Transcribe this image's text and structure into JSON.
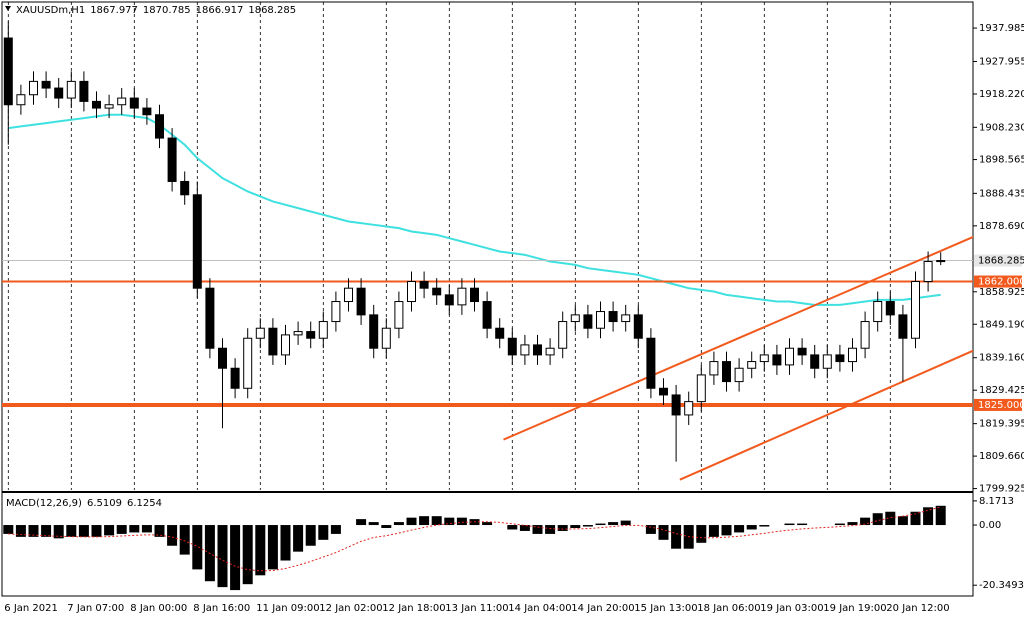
{
  "chart_data": [
    {
      "type": "candlestick",
      "symbol": "XAUUSDm,H1",
      "ohlc_header": [
        1867.977,
        1870.785,
        1866.917,
        1868.285
      ],
      "categories": [
        "6 Jan 2021",
        null,
        null,
        null,
        null,
        "7 Jan 07:00",
        null,
        null,
        null,
        null,
        "8 Jan 00:00",
        null,
        null,
        null,
        null,
        "8 Jan 16:00",
        null,
        null,
        null,
        null,
        "11 Jan 09:00",
        null,
        null,
        null,
        null,
        "12 Jan 02:00",
        null,
        null,
        null,
        null,
        "12 Jan 18:00",
        null,
        null,
        null,
        null,
        "13 Jan 11:00",
        null,
        null,
        null,
        null,
        "14 Jan 04:00",
        null,
        null,
        null,
        null,
        "14 Jan 20:00",
        null,
        null,
        null,
        null,
        "15 Jan 13:00",
        null,
        null,
        null,
        null,
        "18 Jan 06:00",
        null,
        null,
        null,
        null,
        "19 Jan 03:00",
        null,
        null,
        null,
        null,
        "19 Jan 19:00",
        null,
        null,
        null,
        null,
        "20 Jan 12:00",
        null,
        null,
        null,
        null
      ],
      "open": [
        1935,
        1915,
        1918,
        1922,
        1920,
        1917,
        1922,
        1916,
        1914,
        1915,
        1917,
        1914,
        1912,
        1905,
        1892,
        1888,
        1860,
        1842,
        1836,
        1830,
        1845,
        1848,
        1840,
        1846,
        1847,
        1845,
        1850,
        1856,
        1860,
        1852,
        1842,
        1848,
        1856,
        1862,
        1860,
        1858,
        1855,
        1860,
        1856,
        1848,
        1845,
        1840,
        1843,
        1840,
        1842,
        1850,
        1852,
        1848,
        1853,
        1850,
        1852,
        1845,
        1830,
        1828,
        1822,
        1826,
        1834,
        1838,
        1832,
        1836,
        1838,
        1840,
        1837,
        1842,
        1840,
        1836,
        1840,
        1838,
        1842,
        1850,
        1856,
        1852,
        1845,
        1862,
        1867.977
      ],
      "high": [
        1940,
        1921,
        1925,
        1925,
        1923,
        1925,
        1925,
        1919,
        1918,
        1920,
        1920,
        1917,
        1915,
        1908,
        1895,
        1892,
        1863,
        1845,
        1839,
        1848,
        1851,
        1851,
        1849,
        1850,
        1850,
        1853,
        1859,
        1863,
        1863,
        1855,
        1851,
        1859,
        1865,
        1865,
        1863,
        1861,
        1863,
        1863,
        1859,
        1851,
        1848,
        1846,
        1846,
        1845,
        1853,
        1855,
        1855,
        1856,
        1856,
        1855,
        1855,
        1848,
        1833,
        1831,
        1829,
        1837,
        1841,
        1841,
        1839,
        1841,
        1843,
        1843,
        1845,
        1845,
        1843,
        1843,
        1843,
        1845,
        1853,
        1859,
        1859,
        1855,
        1865,
        1871,
        1870.785
      ],
      "low": [
        1903,
        1912,
        1915,
        1917,
        1914,
        1914,
        1913,
        1911,
        1911,
        1912,
        1911,
        1909,
        1902,
        1889,
        1885,
        1857,
        1839,
        1818,
        1827,
        1827,
        1842,
        1837,
        1837,
        1843,
        1842,
        1842,
        1847,
        1853,
        1849,
        1839,
        1839,
        1845,
        1853,
        1857,
        1855,
        1852,
        1852,
        1853,
        1845,
        1842,
        1837,
        1837,
        1837,
        1837,
        1839,
        1847,
        1845,
        1845,
        1847,
        1847,
        1842,
        1827,
        1825,
        1808,
        1819,
        1823,
        1831,
        1829,
        1829,
        1833,
        1835,
        1834,
        1834,
        1837,
        1833,
        1833,
        1835,
        1835,
        1839,
        1847,
        1849,
        1832,
        1842,
        1859,
        1866.917
      ],
      "close": [
        1915,
        1918,
        1922,
        1920,
        1917,
        1922,
        1916,
        1914,
        1915,
        1917,
        1914,
        1912,
        1905,
        1892,
        1888,
        1860,
        1842,
        1836,
        1830,
        1845,
        1848,
        1840,
        1846,
        1847,
        1845,
        1850,
        1856,
        1860,
        1852,
        1842,
        1848,
        1856,
        1862,
        1860,
        1858,
        1855,
        1860,
        1856,
        1848,
        1845,
        1840,
        1843,
        1840,
        1842,
        1850,
        1852,
        1848,
        1853,
        1850,
        1852,
        1845,
        1830,
        1828,
        1822,
        1826,
        1834,
        1838,
        1832,
        1836,
        1838,
        1840,
        1837,
        1842,
        1840,
        1836,
        1840,
        1838,
        1842,
        1850,
        1856,
        1852,
        1845,
        1862,
        1868,
        1868.285
      ],
      "color_up": "#ffffff",
      "color_down": "#000000",
      "ma": {
        "color": "#3fe0e0",
        "values": [
          1908,
          1908.5,
          1909,
          1909.5,
          1910,
          1910.5,
          1911,
          1911.5,
          1912,
          1912,
          1911.5,
          1911,
          1909,
          1906,
          1903,
          1899,
          1896,
          1893,
          1891,
          1889,
          1887.5,
          1886,
          1885,
          1884,
          1883,
          1882,
          1881,
          1880,
          1879.5,
          1879,
          1878.5,
          1878,
          1877,
          1876.5,
          1876,
          1875,
          1874,
          1873,
          1872,
          1871,
          1870.5,
          1870,
          1869,
          1868,
          1867.5,
          1867,
          1866,
          1865.5,
          1865,
          1864.5,
          1864,
          1863,
          1862,
          1861,
          1860,
          1859.5,
          1859,
          1858,
          1857.5,
          1857,
          1856.5,
          1856,
          1856,
          1855.5,
          1855,
          1855,
          1855,
          1855.5,
          1856,
          1856.5,
          1856.5,
          1856.5,
          1857,
          1857.5,
          1858
        ]
      },
      "levels": {
        "color": "#f25a1d",
        "values": [
          1862,
          1825
        ],
        "value_labels": [
          "1862.000",
          "1825.000"
        ]
      },
      "current_price": 1868.285,
      "trendlines": [
        {
          "color": "#f25a1d",
          "x": [
            39.3,
            76.6
          ],
          "y": [
            1814.6,
            1875.4
          ]
        },
        {
          "color": "#f25a1d",
          "x": [
            53.3,
            76.6
          ],
          "y": [
            1802.6,
            1841.3
          ]
        }
      ],
      "ylim": [
        1799.5,
        1945.8
      ],
      "yticks": [
        1937.985,
        1927.955,
        {
          "value": 1918.22,
          "label": "1918.220"
        },
        {
          "value": 1908.23,
          "label": "1908.230"
        },
        1898.565,
        1888.435,
        {
          "value": 1878.69,
          "label": "1878.690"
        },
        1858.925,
        {
          "value": 1849.19,
          "label": "1849.190"
        },
        {
          "value": 1839.16,
          "label": "1839.160"
        },
        1829.425,
        1819.395,
        {
          "value": 1809.66,
          "label": "1809.660"
        },
        1799.925
      ],
      "grid": true
    },
    {
      "type": "macd",
      "title": "MACD(12,26,9)",
      "header_values": [
        6.5109,
        6.1254
      ],
      "color": "#000000",
      "values": [
        -3,
        -4,
        -4,
        -4,
        -4.5,
        -4,
        -4,
        -4,
        -3.5,
        -3,
        -2.5,
        -2.5,
        -4,
        -7,
        -10,
        -15,
        -19,
        -21,
        -22,
        -20,
        -17,
        -15,
        -12,
        -9,
        -7,
        -5,
        -3,
        0,
        2,
        1,
        -1,
        1,
        2.5,
        3,
        3,
        2.5,
        2.5,
        2,
        1,
        0,
        -1.5,
        -2,
        -3,
        -3,
        -2,
        -1,
        -0.5,
        0.5,
        1,
        1.5,
        0,
        -3,
        -5,
        -8,
        -8,
        -6,
        -4,
        -3.5,
        -2.5,
        -1.5,
        -0.5,
        0,
        0.5,
        0.5,
        0,
        0,
        0.5,
        1,
        2.5,
        4,
        4.5,
        3,
        4.5,
        6,
        6.5109
      ],
      "signal": {
        "color": "#e0231c",
        "values": [
          -3,
          -3.2,
          -3.4,
          -3.6,
          -3.8,
          -3.9,
          -4,
          -4,
          -3.9,
          -3.7,
          -3.5,
          -3.3,
          -3.4,
          -4.1,
          -5.3,
          -7.2,
          -9.6,
          -11.9,
          -13.9,
          -15.1,
          -15.5,
          -15.4,
          -14.7,
          -13.6,
          -12.3,
          -10.8,
          -9.3,
          -7.4,
          -5.5,
          -4.2,
          -3.6,
          -2.7,
          -1.7,
          -0.8,
          0,
          0.5,
          0.9,
          1.1,
          1.1,
          0.9,
          0.4,
          -0.1,
          -0.7,
          -1.2,
          -1.4,
          -1.3,
          -1.2,
          -0.9,
          -0.5,
          -0.1,
          -0.1,
          -0.7,
          -1.6,
          -2.9,
          -3.9,
          -4.3,
          -4.3,
          -4.1,
          -3.8,
          -3.3,
          -2.8,
          -2.2,
          -1.7,
          -1.3,
          -1,
          -0.8,
          -0.5,
          -0.2,
          0.3,
          1.5,
          2.5,
          3,
          3.8,
          5,
          6.1254
        ]
      },
      "ylim": [
        -24,
        10.5
      ],
      "yticks": [
        8.1713,
        {
          "value": 0,
          "label": "0.00"
        },
        -20.3493
      ]
    }
  ]
}
